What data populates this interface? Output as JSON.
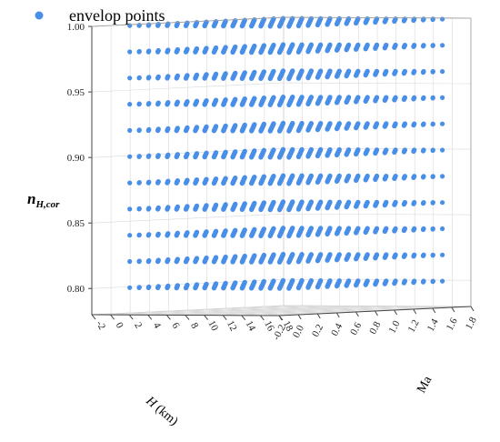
{
  "chart_data": {
    "type": "scatter",
    "projection": "3d",
    "legend": {
      "entries": [
        {
          "label": "envelop points",
          "color": "#4a8fe7"
        }
      ],
      "placement": "top-left"
    },
    "series": [
      {
        "name": "envelop points",
        "color": "#4a8fe7"
      }
    ],
    "axes": {
      "x": {
        "label": "H (km)",
        "label_italic_part": "H",
        "label_rest": " (km)",
        "range": [
          -2,
          18
        ],
        "ticks": [
          "-2",
          "0",
          "2",
          "4",
          "6",
          "8",
          "10",
          "12",
          "14",
          "16",
          "18"
        ]
      },
      "y": {
        "label": "Ma",
        "range": [
          -0.2,
          1.8
        ],
        "ticks": [
          "-0.2",
          "0.0",
          "0.2",
          "0.4",
          "0.6",
          "0.8",
          "1.0",
          "1.2",
          "1.4",
          "1.6",
          "1.8"
        ]
      },
      "z": {
        "label_main": "n",
        "label_sub": "H,cor",
        "range": [
          0.78,
          1.0
        ],
        "ticks": [
          "0.80",
          "0.85",
          "0.90",
          "0.95",
          "1.00"
        ]
      }
    },
    "grid": true,
    "data_description": {
      "H_grid": [
        0,
        17,
        1
      ],
      "Ma_grid": [
        0,
        1.6,
        0.1
      ],
      "n_levels": [
        0.8,
        0.82,
        0.84,
        0.86,
        0.88,
        0.9,
        0.92,
        0.94,
        0.96,
        0.98,
        1.0
      ]
    }
  }
}
